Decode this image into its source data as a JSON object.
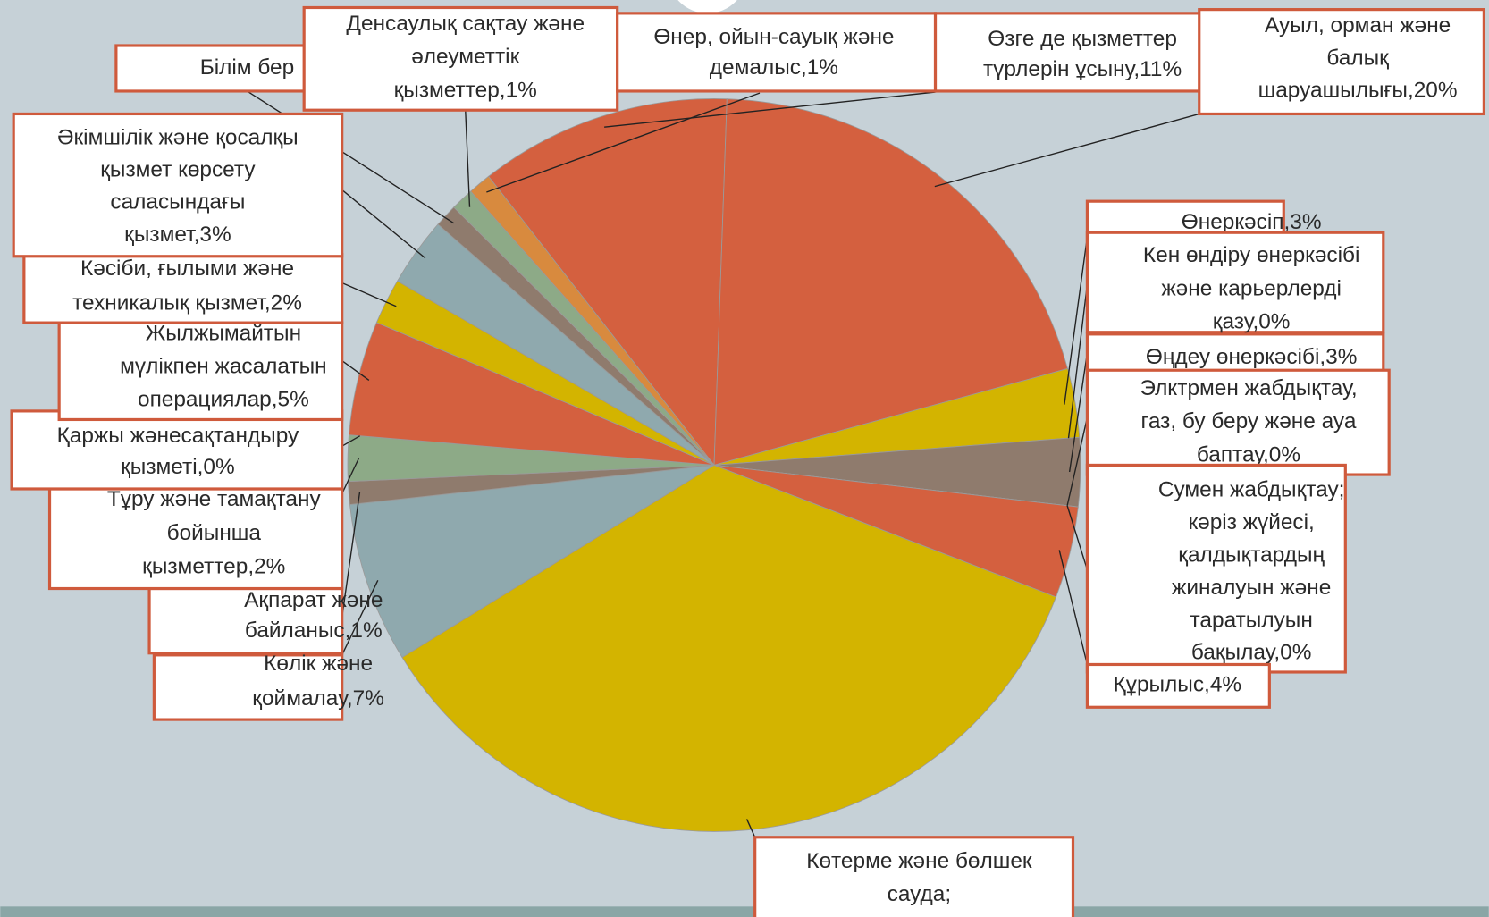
{
  "chart_data": {
    "type": "pie",
    "labels": [
      [
        "Өзге де қызметтер",
        "түрлерін ұсыну,11%"
      ],
      [
        "Ауыл, орман және",
        "балық",
        "шаруашылығы,20%"
      ],
      [
        "Өнеркәсіп,3%"
      ],
      [
        "Кен өндіру өнеркәсібі",
        "және карьерлерді",
        "қазу,0%"
      ],
      [
        "Өңдеу өнеркәсібі,3%"
      ],
      [
        "Элктрмен жабдықтау,",
        "газ, бу беру және ауа",
        "баптау,0%"
      ],
      [
        "Сумен жабдықтау;",
        "кәріз жүйесі,",
        "қалдықтардың",
        "жиналуын және",
        "таратылуын",
        "бақылау,0%"
      ],
      [
        "Құрылыс,4%"
      ],
      [
        "Көтерме және бөлшек",
        "сауда;"
      ],
      [
        "Көлік және",
        "қоймалау,7%"
      ],
      [
        "Ақпарат және",
        "байланыс,1%"
      ],
      [
        "Тұру және тамақтану",
        "бойынша",
        "қызметтер,2%"
      ],
      [
        "Қаржы жәнесақтандыру",
        "қызметі,0%"
      ],
      [
        "Жылжымайтын",
        "мүлікпен жасалатын",
        "операциялар,5%"
      ],
      [
        "Кәсіби, ғылыми және",
        "техникалық қызмет,2%"
      ],
      [
        "Әкімшілік және қосалқы",
        "қызмет көрсету",
        "саласындағы",
        "қызмет,3%"
      ],
      [
        "Білім бер"
      ],
      [
        "Денсаулық сақтау және",
        "әлеуметтік",
        "қызметтер,1%"
      ],
      [
        "Өнер, ойын-сауық және",
        "демалыс,1%"
      ]
    ],
    "values": [
      11,
      20,
      3,
      0,
      3,
      0,
      0,
      4,
      35,
      7,
      1,
      2,
      0,
      5,
      2,
      3,
      1,
      1,
      1
    ],
    "colors": [
      "#d4603f",
      "#d4603f",
      "#d3b400",
      "#8f7b6d",
      "#8f7b6d",
      "#d88a3e",
      "#8daa87",
      "#d4603f",
      "#d3b400",
      "#8fa9ae",
      "#8f7b6d",
      "#8daa87",
      "#d88a3e",
      "#d4603f",
      "#d3b400",
      "#8fa9ae",
      "#8f7b6d",
      "#8daa87",
      "#d88a3e"
    ]
  }
}
